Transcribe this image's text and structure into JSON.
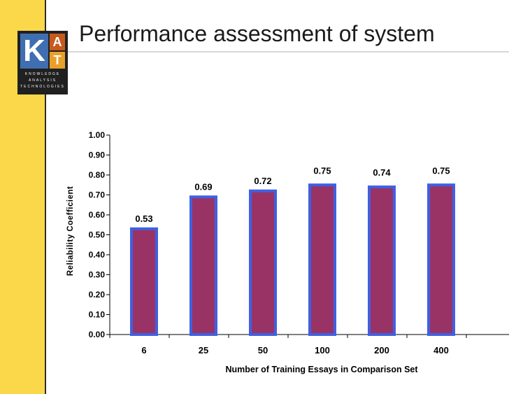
{
  "slide": {
    "title": "Performance assessment of system",
    "logo": {
      "letters": [
        "K",
        "A",
        "T"
      ],
      "words": [
        "KNOWLEDGE",
        "ANALYSIS",
        "TECHNOLOGIES"
      ]
    }
  },
  "colors": {
    "sidebar": "#fad84a",
    "bar_fill": "#993366",
    "bar_border": "#4060e0",
    "logo_bg": "#202020"
  },
  "chart_data": {
    "type": "bar",
    "categories": [
      "6",
      "25",
      "50",
      "100",
      "200",
      "400"
    ],
    "values": [
      0.53,
      0.69,
      0.72,
      0.75,
      0.74,
      0.75
    ],
    "data_labels": [
      "0.53",
      "0.69",
      "0.72",
      "0.75",
      "0.74",
      "0.75"
    ],
    "title": "",
    "xlabel": "Number of Training Essays in Comparison Set",
    "ylabel": "Reliability Coefficient",
    "ylim": [
      0,
      1
    ],
    "yticks": [
      "0.00",
      "0.10",
      "0.20",
      "0.30",
      "0.40",
      "0.50",
      "0.60",
      "0.70",
      "0.80",
      "0.90",
      "1.00"
    ],
    "grid": false,
    "legend": "none"
  }
}
